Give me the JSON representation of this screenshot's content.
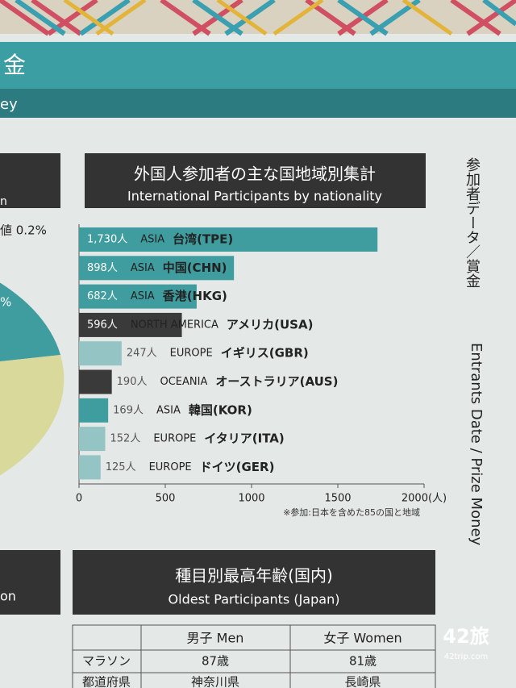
{
  "chart_data": {
    "type": "bar",
    "orientation": "horizontal",
    "title": "外国人参加者の主な国地域別集計",
    "subtitle": "International Participants by nationality",
    "categories": [
      "台湾(TPE)",
      "中国(CHN)",
      "香港(HKG)",
      "アメリカ(USA)",
      "イギリス(GBR)",
      "オーストラリア(AUS)",
      "韓国(KOR)",
      "イタリア(ITA)",
      "ドイツ(GER)"
    ],
    "regions": [
      "ASIA",
      "ASIA",
      "ASIA",
      "NORTH AMERICA",
      "EUROPE",
      "OCEANIA",
      "ASIA",
      "EUROPE",
      "EUROPE"
    ],
    "values": [
      1730,
      898,
      682,
      596,
      247,
      190,
      169,
      152,
      125
    ],
    "value_labels": [
      "1,730人",
      "898人",
      "682人",
      "596人",
      "247人",
      "190人",
      "169人",
      "152人",
      "125人"
    ],
    "colors": [
      "#3f9c9f",
      "#3f9c9f",
      "#3f9c9f",
      "#3a3a3a",
      "#95c4c4",
      "#3a3a3a",
      "#3f9c9f",
      "#95c4c4",
      "#95c4c4"
    ],
    "xlim": [
      0,
      2000
    ],
    "xticks": [
      0,
      500,
      1000,
      1500,
      {
        "value": 2000,
        "label": "2000(人)"
      }
    ],
    "note": "※参加:日本を含めた85の国と地域"
  },
  "page": {
    "section_title": "金",
    "section_subtitle": "ey",
    "side_jp": "参加者データ／賞金",
    "side_en": "Entrants Date / Prize Money",
    "left_texts": [
      "n",
      "値 0.2%",
      "%",
      "on"
    ],
    "table_title": "種目別最高年齢(国内)",
    "table_subtitle": "Oldest Participants (Japan)",
    "table": {
      "header": [
        "男子 Men",
        "女子 Women"
      ],
      "rows": [
        [
          "マラソン",
          "87歳",
          "81歳"
        ],
        [
          "都道府県",
          "神奈川県",
          "長崎県"
        ]
      ]
    },
    "watermark": [
      "42旅",
      "42trip.com"
    ]
  }
}
